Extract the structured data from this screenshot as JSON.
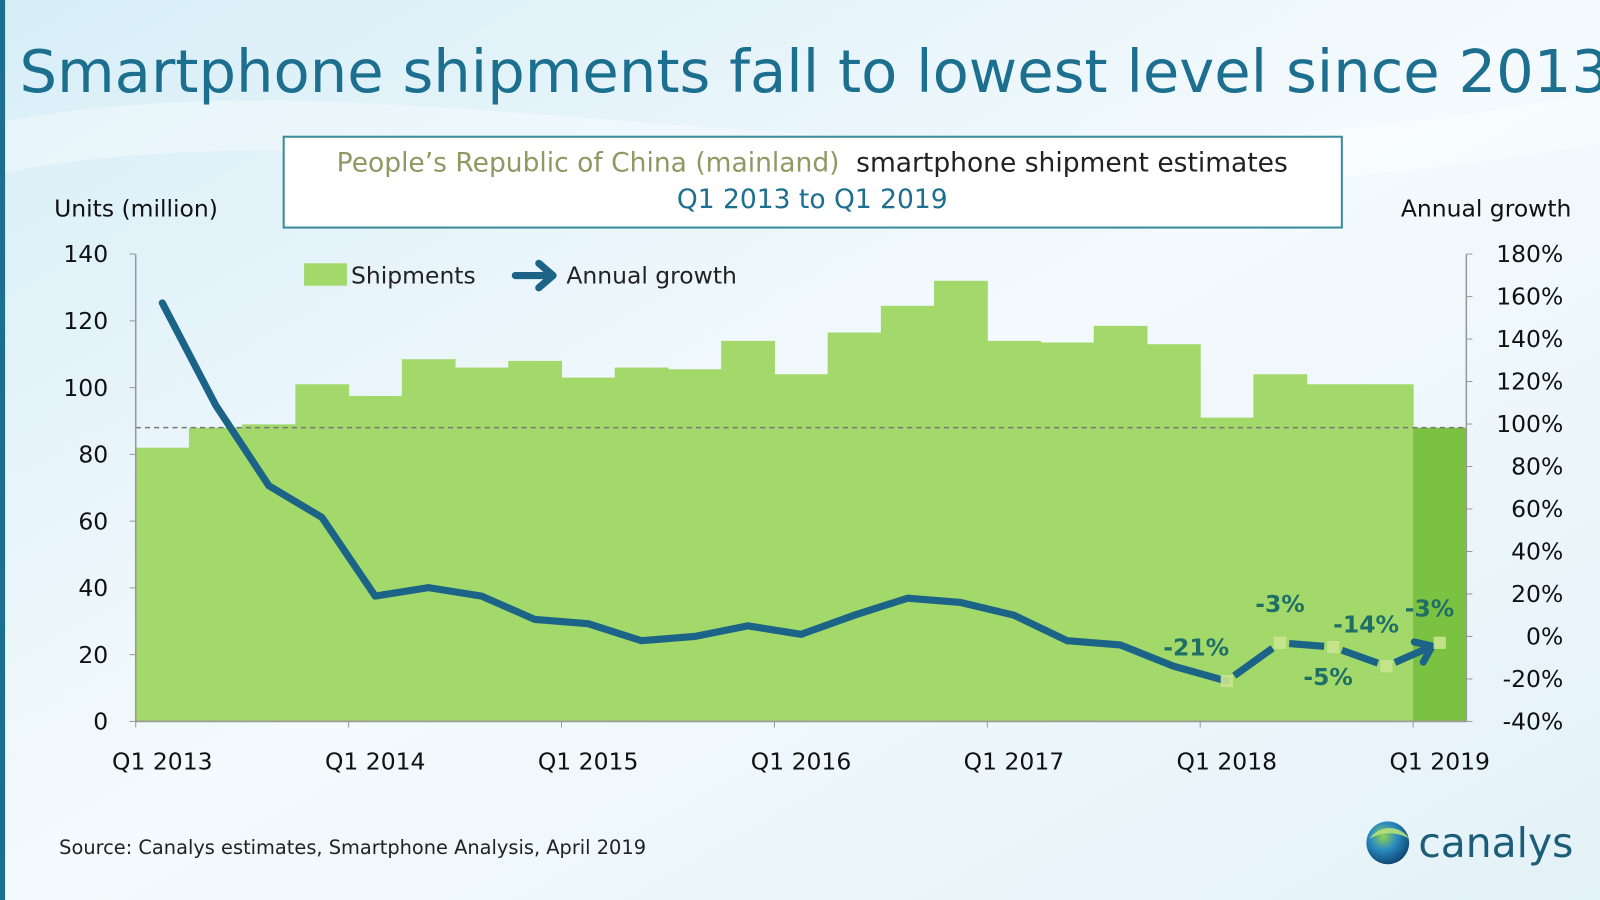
{
  "title": "Smartphone shipments fall to lowest level since 2013",
  "subtitle": {
    "region": "People’s Republic of China (mainland)",
    "rest": "smartphone shipment estimates",
    "period": "Q1 2013 to Q1 2019"
  },
  "source": "Source:  Canalys estimates, Smartphone  Analysis, April 2019",
  "logo_text": "canalys",
  "colors": {
    "title": "#1c6f8f",
    "bars": "#a3d86a",
    "last_bar": "#7cc242",
    "line": "#1b6488",
    "label": "#1f6f66",
    "region": "#8c9a63"
  },
  "chart_data": {
    "type": "bar+line",
    "categories": [
      "Q1 2013",
      "Q2 2013",
      "Q3 2013",
      "Q4 2013",
      "Q1 2014",
      "Q2 2014",
      "Q3 2014",
      "Q4 2014",
      "Q1 2015",
      "Q2 2015",
      "Q3 2015",
      "Q4 2015",
      "Q1 2016",
      "Q2 2016",
      "Q3 2016",
      "Q4 2016",
      "Q1 2017",
      "Q2 2017",
      "Q3 2017",
      "Q4 2017",
      "Q1 2018",
      "Q2 2018",
      "Q3 2018",
      "Q4 2018",
      "Q1 2019"
    ],
    "x_tick_labels": [
      "Q1 2013",
      "Q1 2014",
      "Q1 2015",
      "Q1 2016",
      "Q1 2017",
      "Q1 2018",
      "Q1 2019"
    ],
    "ylabel_left": "Units (million)",
    "ylabel_right": "Annual growth",
    "ylim_left": [
      0,
      140
    ],
    "yticks_left": [
      "0",
      "20",
      "40",
      "60",
      "80",
      "100",
      "120",
      "140"
    ],
    "ylim_right": [
      -40,
      180
    ],
    "yticks_right": [
      "-40%",
      "-20%",
      "0%",
      "20%",
      "40%",
      "60%",
      "80%",
      "100%",
      "120%",
      "140%",
      "160%",
      "180%"
    ],
    "reference_line": 88,
    "legend": [
      "Shipments",
      "Annual growth"
    ],
    "legend_position": "top-left",
    "series": [
      {
        "name": "Shipments",
        "type": "bar",
        "unit": "million",
        "values": [
          82,
          88,
          89,
          101,
          97.5,
          108.5,
          106,
          108,
          103,
          106,
          105.5,
          114,
          104,
          116.5,
          124.5,
          132,
          114,
          113.5,
          118.5,
          113,
          91,
          104,
          101,
          101,
          88
        ]
      },
      {
        "name": "Annual growth",
        "type": "line",
        "unit": "%",
        "values": [
          157,
          109,
          71,
          56,
          19,
          23,
          19,
          8,
          6,
          -2,
          0,
          5,
          1,
          10,
          18,
          16,
          10,
          -2,
          -4,
          -14,
          -21,
          -3,
          -5,
          -14,
          -3
        ]
      }
    ],
    "data_labels": [
      {
        "index": 20,
        "text": "-21%"
      },
      {
        "index": 21,
        "text": "-3%"
      },
      {
        "index": 22,
        "text": "-5%"
      },
      {
        "index": 23,
        "text": "-14%"
      },
      {
        "index": 24,
        "text": "-3%"
      }
    ]
  }
}
